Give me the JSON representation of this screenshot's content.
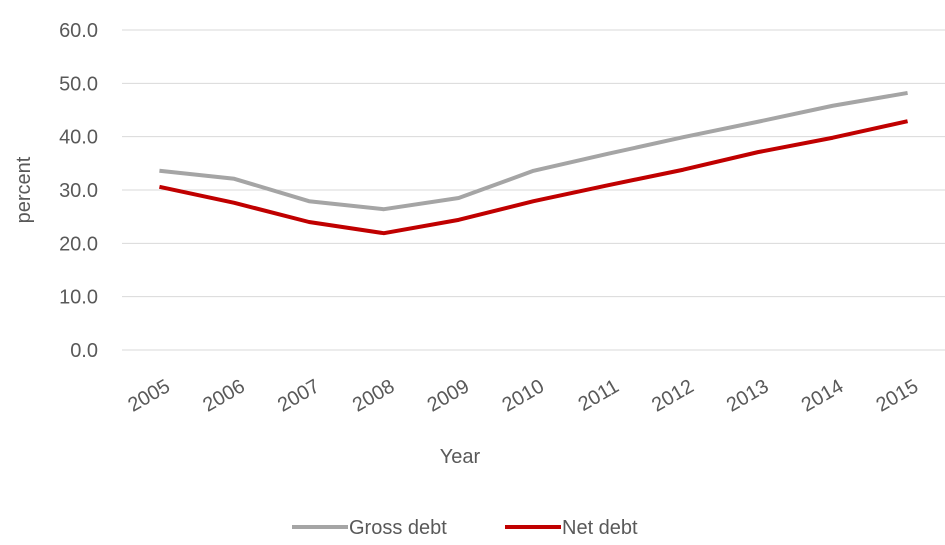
{
  "chart_data": {
    "type": "line",
    "x_label": "Year",
    "y_label": "percent",
    "categories": [
      "2005",
      "2006",
      "2007",
      "2008",
      "2009",
      "2010",
      "2011",
      "2012",
      "2013",
      "2014",
      "2015"
    ],
    "series": [
      {
        "name": "Gross debt",
        "color": "#a5a5a5",
        "values": [
          33.6,
          32.1,
          27.9,
          26.4,
          28.5,
          33.6,
          36.8,
          39.9,
          42.8,
          45.8,
          48.2
        ]
      },
      {
        "name": "Net debt",
        "color": "#c00000",
        "values": [
          30.6,
          27.6,
          24.0,
          21.9,
          24.4,
          27.9,
          30.9,
          33.8,
          37.1,
          39.8,
          42.9
        ]
      }
    ],
    "ylim": [
      0,
      60
    ],
    "yticks": [
      {
        "value": 0,
        "label": "0.0"
      },
      {
        "value": 10,
        "label": "10.0"
      },
      {
        "value": 20,
        "label": "20.0"
      },
      {
        "value": 30,
        "label": "30.0"
      },
      {
        "value": 40,
        "label": "40.0"
      },
      {
        "value": 50,
        "label": "50.0"
      },
      {
        "value": 60,
        "label": "60.0"
      }
    ],
    "grid": true,
    "legend": "bottom"
  }
}
